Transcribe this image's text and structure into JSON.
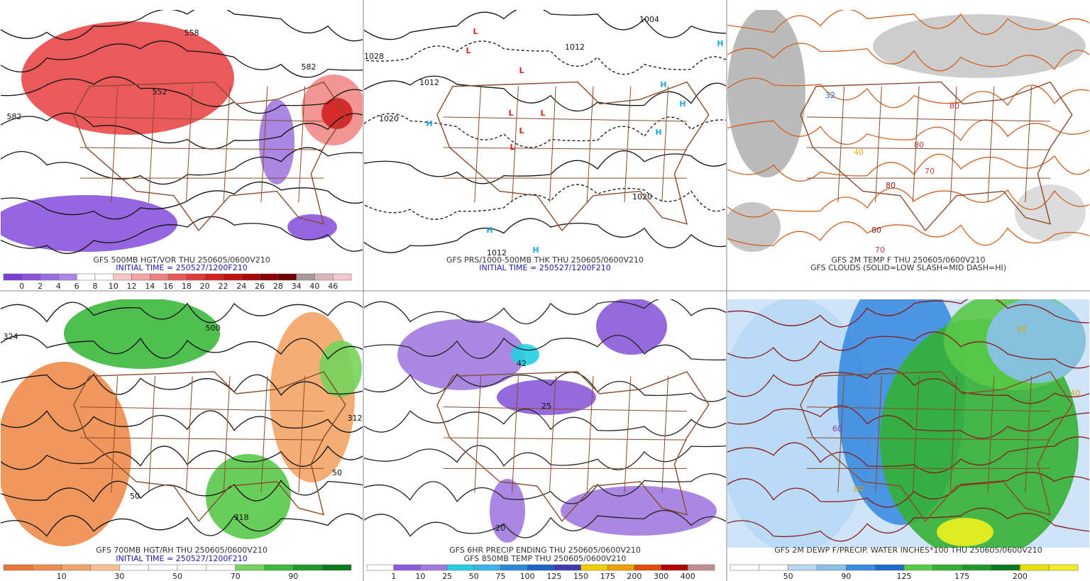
{
  "panels": [
    {
      "captions": [
        {
          "text": "GFS 500MB HGT/VOR THU 250605/0600V210",
          "color": "#333333"
        },
        {
          "text": "INITIAL TIME = 250527/1200F210",
          "color": "#1a1aa8"
        }
      ],
      "colorbar": {
        "colors": [
          "#7b3fd6",
          "#8a55dc",
          "#9a6ce2",
          "#ad86e8",
          "#ffffff",
          "#ffffff",
          "#f7c6c6",
          "#f3a3a3",
          "#ef8080",
          "#e85a5a",
          "#e03a3a",
          "#d42020",
          "#c01010",
          "#a80808",
          "#8c0000",
          "#700000",
          "#a89a9a",
          "#d8b8b8",
          "#f6c8d2"
        ],
        "labels": [
          "0",
          "2",
          "4",
          "6",
          "8",
          "10",
          "12",
          "14",
          "16",
          "18",
          "20",
          "22",
          "24",
          "26",
          "28",
          "34",
          "40",
          "46"
        ]
      },
      "map_labels": [
        {
          "text": "582",
          "color": "#111111"
        },
        {
          "text": "558",
          "color": "#111111"
        },
        {
          "text": "582",
          "color": "#111111"
        },
        {
          "text": "552",
          "color": "#111111"
        }
      ]
    },
    {
      "captions": [
        {
          "text": "GFS PRS/1000-500MB THK THU 250605/0600V210",
          "color": "#333333"
        },
        {
          "text": "INITIAL TIME = 250527/1200F210",
          "color": "#1a1aa8"
        }
      ],
      "map_labels": [
        {
          "text": "L",
          "color": "#e02020"
        },
        {
          "text": "L",
          "color": "#e02020"
        },
        {
          "text": "L",
          "color": "#e02020"
        },
        {
          "text": "L",
          "color": "#e02020"
        },
        {
          "text": "L",
          "color": "#e02020"
        },
        {
          "text": "L",
          "color": "#e02020"
        },
        {
          "text": "L",
          "color": "#e02020"
        },
        {
          "text": "H",
          "color": "#1fa8e0"
        },
        {
          "text": "H",
          "color": "#1fa8e0"
        },
        {
          "text": "H",
          "color": "#1fa8e0"
        },
        {
          "text": "H",
          "color": "#1fa8e0"
        },
        {
          "text": "H",
          "color": "#1fa8e0"
        },
        {
          "text": "H",
          "color": "#1fa8e0"
        },
        {
          "text": "H",
          "color": "#1fa8e0"
        },
        {
          "text": "1028",
          "color": "#111111"
        },
        {
          "text": "1020",
          "color": "#111111"
        },
        {
          "text": "1012",
          "color": "#111111"
        },
        {
          "text": "1012",
          "color": "#111111"
        },
        {
          "text": "1020",
          "color": "#111111"
        },
        {
          "text": "1012",
          "color": "#111111"
        },
        {
          "text": "1004",
          "color": "#111111"
        }
      ]
    },
    {
      "captions": [
        {
          "text": "GFS 2M TEMP F THU 250605/0600V210",
          "color": "#333333"
        },
        {
          "text": "GFS CLOUDS (SOLID=LOW SLASH=MID DASH=HI)",
          "color": "#333333"
        }
      ],
      "map_labels": [
        {
          "text": "80",
          "color": "#c03030"
        },
        {
          "text": "80",
          "color": "#c03030"
        },
        {
          "text": "70",
          "color": "#d04040"
        },
        {
          "text": "80",
          "color": "#8a1a1a"
        },
        {
          "text": "40",
          "color": "#e0b000"
        },
        {
          "text": "32",
          "color": "#1a6ad8"
        },
        {
          "text": "80",
          "color": "#8a1a1a"
        },
        {
          "text": "70",
          "color": "#d04040"
        }
      ]
    },
    {
      "captions": [
        {
          "text": "GFS 700MB HGT/RH THU 250605/0600V210",
          "color": "#333333"
        },
        {
          "text": "INITIAL TIME = 250527/1200F210",
          "color": "#1a1aa8"
        }
      ],
      "colorbar": {
        "colors": [
          "#e8783a",
          "#ee8c4c",
          "#f2a466",
          "#f7c08e",
          "#ffffff",
          "#ffffff",
          "#ffffff",
          "#ffffff",
          "#74d45c",
          "#3cb83c",
          "#1e9a2a",
          "#0c7a1c"
        ],
        "labels": [
          "10",
          "30",
          "50",
          "70",
          "90"
        ]
      },
      "map_labels": [
        {
          "text": "500",
          "color": "#111111"
        },
        {
          "text": "50",
          "color": "#111111"
        },
        {
          "text": "50",
          "color": "#111111"
        },
        {
          "text": "318",
          "color": "#111111"
        },
        {
          "text": "324",
          "color": "#111111"
        },
        {
          "text": "312",
          "color": "#111111"
        }
      ]
    },
    {
      "captions": [
        {
          "text": "GFS 6HR PRECIP ENDING THU 250605/0600V210",
          "color": "#333333"
        },
        {
          "text": "GFS 850MB TEMP THU 250605/0600V210",
          "color": "#333333"
        }
      ],
      "colorbar": {
        "colors": [
          "#ffffff",
          "#8a5ad8",
          "#a07ae0",
          "#22d0e0",
          "#38b4e8",
          "#2a8ad8",
          "#1e5ec8",
          "#3c3cb0",
          "#f0d000",
          "#f0a000",
          "#e05000",
          "#b00000",
          "#c09090"
        ],
        "labels": [
          "1",
          "10",
          "25",
          "50",
          "75",
          "100",
          "125",
          "150",
          "175",
          "200",
          "300",
          "400"
        ]
      },
      "map_labels": [
        {
          "text": "42",
          "color": "#111111"
        },
        {
          "text": "25",
          "color": "#111111"
        },
        {
          "text": "20",
          "color": "#111111"
        }
      ]
    },
    {
      "captions": [
        {
          "text": "GFS 2M DEWP F/PRECIP. WATER INCHES*100 THU 250605/0600V210",
          "color": "#333333"
        }
      ],
      "colorbar": {
        "colors": [
          "#ffffff",
          "#ffffff",
          "#b8d8f4",
          "#8cc0ec",
          "#3c8ce0",
          "#1e6ad0",
          "#58c848",
          "#34b034",
          "#1e9a28",
          "#0a7a18",
          "#e8e000",
          "#f0f020"
        ],
        "labels": [
          "50",
          "90",
          "125",
          "175",
          "200"
        ]
      },
      "map_labels": [
        {
          "text": "60",
          "color": "#8a2aa8"
        },
        {
          "text": "80",
          "color": "#e0a000"
        },
        {
          "text": "50",
          "color": "#e0a000"
        },
        {
          "text": "40",
          "color": "#e0a000"
        }
      ]
    }
  ]
}
